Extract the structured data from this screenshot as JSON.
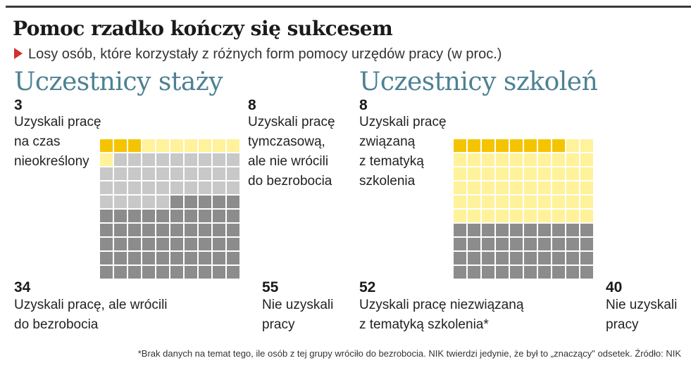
{
  "header": {
    "title": "Pomoc rzadko kończy się sukcesem",
    "subtitle": "Losy osób, które korzystały z różnych form pomocy urzędów pracy (w proc.)"
  },
  "sections": [
    {
      "title": "Uczestnicy staży",
      "labels": [
        {
          "value": "3",
          "text": "Uzyskali pracę\nna czas\nnieokreślony"
        },
        {
          "value": "8",
          "text": "Uzyskali pracę\ntymczasową,\nale nie wrócili\ndo bezrobocia"
        },
        {
          "value": "34",
          "text": "Uzyskali pracę, ale wrócili\ndo bezrobocia"
        },
        {
          "value": "55",
          "text": "Nie uzyskali\npracy"
        }
      ]
    },
    {
      "title": "Uczestnicy szkoleń",
      "labels": [
        {
          "value": "8",
          "text": "Uzyskali pracę\nzwiązaną\nz tematyką\nszkolenia"
        },
        {
          "value": "52",
          "text": "Uzyskali pracę niezwiązaną\nz tematyką szkolenia*"
        },
        {
          "value": "40",
          "text": "Nie uzyskali\npracy"
        }
      ]
    }
  ],
  "footnote": "*Brak danych na temat tego, ile osób z tej grupy wróciło do bezrobocia. NIK twierdzi jedynie, że był to „znaczący\" odsetek. Źródło: NIK",
  "chart_data": [
    {
      "type": "waffle",
      "title": "Uczestnicy staży",
      "unit": "%",
      "categories": [
        "Uzyskali pracę na czas nieokreślony",
        "Uzyskali pracę tymczasową, ale nie wrócili do bezrobocia",
        "Uzyskali pracę, ale wrócili do bezrobocia",
        "Nie uzyskali pracy"
      ],
      "values": [
        3,
        8,
        34,
        55
      ],
      "colors": [
        "#f5c400",
        "#fff29a",
        "#c8c8c8",
        "#8c8c8c"
      ]
    },
    {
      "type": "waffle",
      "title": "Uczestnicy szkoleń",
      "unit": "%",
      "categories": [
        "Uzyskali pracę związaną z tematyką szkolenia",
        "Uzyskali pracę niezwiązaną z tematyką szkolenia*",
        "Nie uzyskali pracy"
      ],
      "values": [
        8,
        52,
        40
      ],
      "colors": [
        "#f5c400",
        "#fff29a",
        "#8c8c8c"
      ]
    }
  ]
}
